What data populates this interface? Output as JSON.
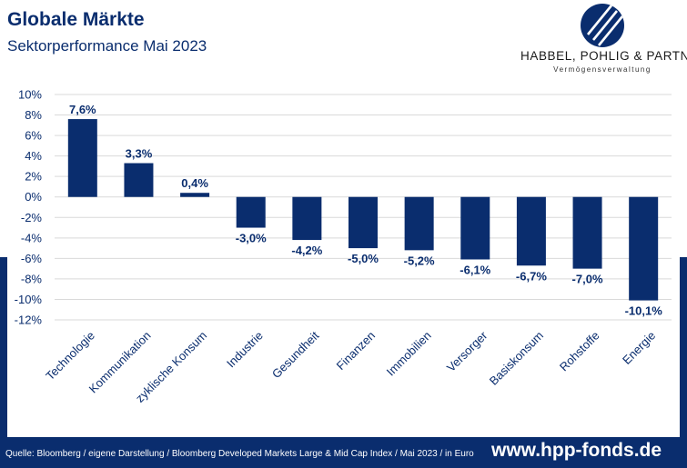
{
  "header": {
    "title": "Globale Märkte",
    "subtitle": "Sektorperformance Mai 2023"
  },
  "logo": {
    "name": "HABBEL, POHLIG & PARTNER",
    "tagline": "Vermögensverwaltung"
  },
  "footer": {
    "source": "Quelle: Bloomberg / eigene Darstellung / Bloomberg Developed Markets Large & Mid Cap Index / Mai 2023 / in Euro",
    "url": "www.hpp-fonds.de"
  },
  "colors": {
    "bar": "#0a2d6e",
    "accent": "#0a2d6e",
    "gridline": "#d9d9d9"
  },
  "chart_data": {
    "type": "bar",
    "title": "Sektorperformance Mai 2023",
    "categories": [
      "Technologie",
      "Kommunikation",
      "zyklische Konsum",
      "Industrie",
      "Gesundheit",
      "Finanzen",
      "Immobilien",
      "Versorger",
      "Basiskonsum",
      "Rohstoffe",
      "Energie"
    ],
    "values": [
      7.6,
      3.3,
      0.4,
      -3.0,
      -4.2,
      -5.0,
      -5.2,
      -6.1,
      -6.7,
      -7.0,
      -10.1
    ],
    "value_labels": [
      "7,6%",
      "3,3%",
      "0,4%",
      "-3,0%",
      "-4,2%",
      "-5,0%",
      "-5,2%",
      "-6,1%",
      "-6,7%",
      "-7,0%",
      "-10,1%"
    ],
    "yticks": [
      10,
      8,
      6,
      4,
      2,
      0,
      -2,
      -4,
      -6,
      -8,
      -10,
      -12
    ],
    "ytick_labels": [
      "10%",
      "8%",
      "6%",
      "4%",
      "2%",
      "0%",
      "-2%",
      "-4%",
      "-6%",
      "-8%",
      "-10%",
      "-12%"
    ],
    "ylim": [
      -12,
      10
    ],
    "xlabel": "",
    "ylabel": "",
    "grid": true,
    "legend": false
  }
}
